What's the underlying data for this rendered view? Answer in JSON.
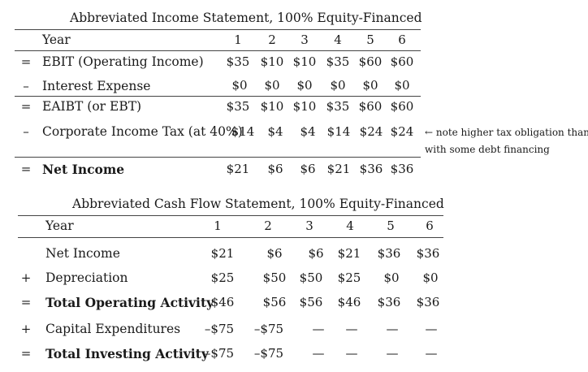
{
  "income": {
    "title": "Abbreviated Income Statement, 100% Equity-Financed",
    "year_label": "Year",
    "years": [
      "1",
      "2",
      "3",
      "4",
      "5",
      "6"
    ],
    "rows": [
      {
        "op": "=",
        "label": "EBIT (Operating Income)",
        "values": [
          "$35",
          "$10",
          "$10",
          "$35",
          "$60",
          "$60"
        ]
      },
      {
        "op": "–",
        "label": "Interest Expense",
        "values": [
          "$0",
          "$0",
          "$0",
          "$0",
          "$0",
          "$0"
        ]
      },
      {
        "op": "=",
        "label": "EAIBT (or EBT)",
        "values": [
          "$35",
          "$10",
          "$10",
          "$35",
          "$60",
          "$60"
        ]
      },
      {
        "op": "–",
        "label": "Corporate Income Tax (at 40%)",
        "values": [
          "$14",
          "$4",
          "$4",
          "$14",
          "$24",
          "$24"
        ]
      },
      {
        "op": "=",
        "label": "Net Income",
        "values": [
          "$21",
          "$6",
          "$6",
          "$21",
          "$36",
          "$36"
        ]
      }
    ],
    "note_line1": "← note higher tax obligation than",
    "note_line2": "with some debt financing"
  },
  "cashflow": {
    "title": "Abbreviated Cash Flow Statement, 100% Equity-Financed",
    "year_label": "Year",
    "years": [
      "1",
      "2",
      "3",
      "4",
      "5",
      "6"
    ],
    "rows": [
      {
        "op": "",
        "label": "Net Income",
        "values": [
          "$21",
          "$6",
          "$6",
          "$21",
          "$36",
          "$36"
        ]
      },
      {
        "op": "+",
        "label": "Depreciation",
        "values": [
          "$25",
          "$50",
          "$50",
          "$25",
          "$0",
          "$0"
        ]
      },
      {
        "op": "=",
        "label": "Total Operating Activity",
        "values": [
          "$46",
          "$56",
          "$56",
          "$46",
          "$36",
          "$36"
        ]
      },
      {
        "op": "+",
        "label": "Capital Expenditures",
        "values": [
          "–$75",
          "–$75",
          "—",
          "—",
          "—",
          "—"
        ]
      },
      {
        "op": "=",
        "label": "Total Investing Activity",
        "values": [
          "–$75",
          "–$75",
          "—",
          "—",
          "—",
          "—"
        ]
      }
    ]
  }
}
